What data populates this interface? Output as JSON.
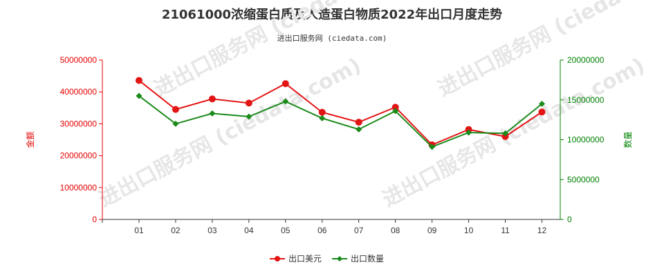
{
  "chart_data": {
    "type": "line",
    "title": "21061000浓缩蛋白质及人造蛋白物质2022年出口月度走势",
    "subtitle": "进出口服务网 (ciedata.com)",
    "watermark": "进出口服务网 (ciedata.com)",
    "categories": [
      "01",
      "02",
      "03",
      "04",
      "05",
      "06",
      "07",
      "08",
      "09",
      "10",
      "11",
      "12"
    ],
    "y_left": {
      "label": "金额",
      "min": 0,
      "max": 50000000,
      "ticks": [
        0,
        10000000,
        20000000,
        30000000,
        40000000,
        50000000
      ],
      "color": "#e60000"
    },
    "y_right": {
      "label": "数量",
      "min": 0,
      "max": 20000000,
      "ticks": [
        0,
        5000000,
        10000000,
        15000000,
        20000000
      ],
      "color": "#008000"
    },
    "series": [
      {
        "name": "出口美元",
        "axis": "left",
        "color": "#e31414",
        "values": [
          43600000,
          34500000,
          37800000,
          36500000,
          42600000,
          33600000,
          30500000,
          35200000,
          23400000,
          28200000,
          26000000,
          33700000
        ]
      },
      {
        "name": "出口数量",
        "axis": "right",
        "color": "#1a8a1a",
        "values": [
          15500000,
          12000000,
          13300000,
          12900000,
          14800000,
          12700000,
          11300000,
          13600000,
          9100000,
          10900000,
          10800000,
          14500000
        ]
      }
    ],
    "grid": false,
    "legend_position": "bottom-center"
  }
}
